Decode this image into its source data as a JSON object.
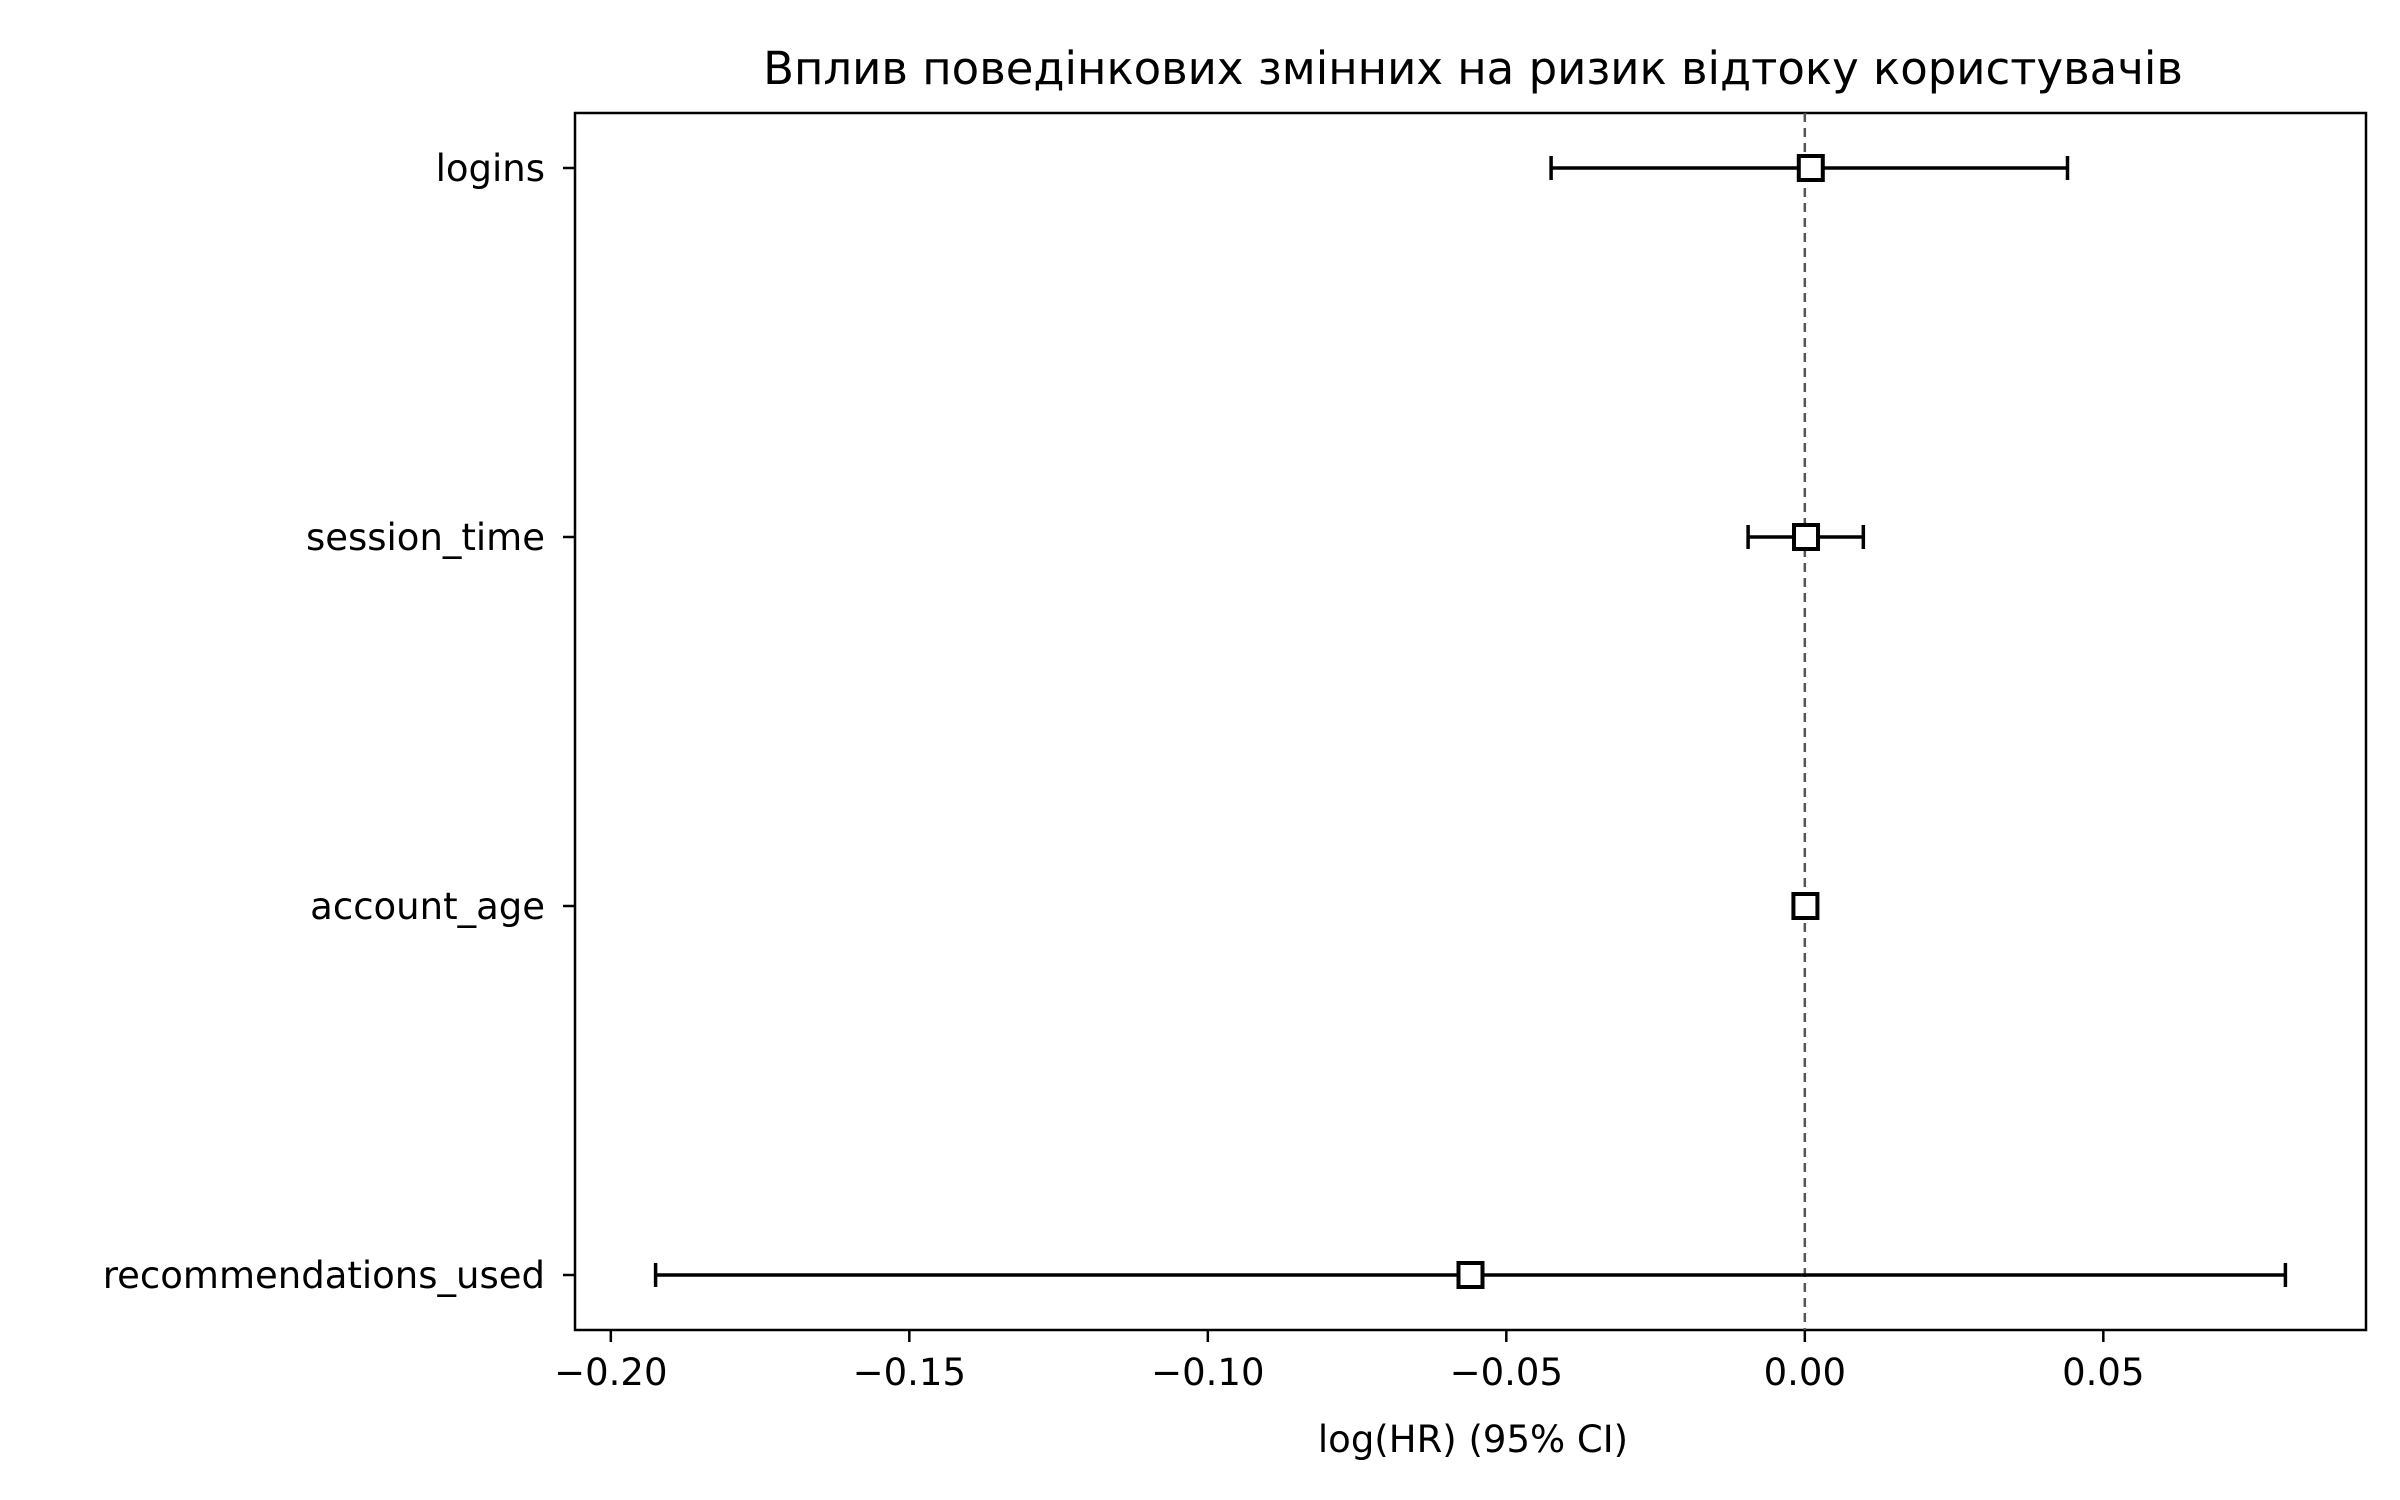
{
  "chart_data": {
    "type": "scatter",
    "subtype": "forest-plot",
    "title": "Вплив поведінкових змінних на ризик відтоку користувачів",
    "xlabel": "log(HR) (95% CI)",
    "ylabel": "",
    "xlim": [
      -0.206,
      0.094
    ],
    "x_ticks": [
      -0.2,
      -0.15,
      -0.1,
      -0.05,
      0.0,
      0.05
    ],
    "x_tick_labels": [
      "−0.20",
      "−0.15",
      "−0.10",
      "−0.05",
      "0.00",
      "0.05"
    ],
    "reference_line": 0.0,
    "grid": false,
    "categories": [
      "logins",
      "session_time",
      "account_age",
      "recommendations_used"
    ],
    "estimates": [
      0.001,
      0.0002,
      0.0001,
      -0.056
    ],
    "ci_lower": [
      -0.0425,
      -0.0095,
      0.0001,
      -0.1925
    ],
    "ci_upper": [
      0.044,
      0.0098,
      0.0001,
      0.0805
    ],
    "marker": "square-open",
    "colors": {
      "line": "#000000",
      "marker_fill": "#ffffff",
      "reference": "#555555",
      "background": "#ffffff"
    }
  }
}
